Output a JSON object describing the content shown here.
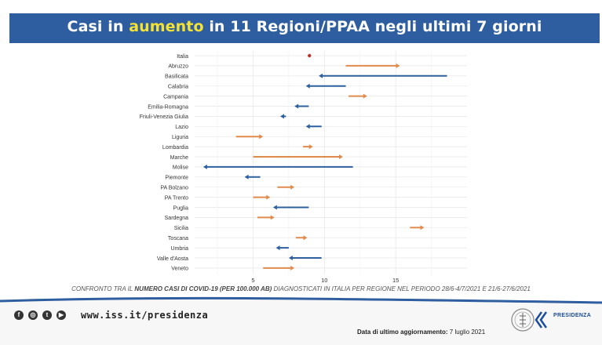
{
  "header": {
    "title_part1": "Casi in ",
    "title_highlight": "aumento",
    "title_part2": " in 11 Regioni/PPAA negli ultimi 7 giorni",
    "bar_color": "#2e5ea0",
    "highlight_color": "#f5e233"
  },
  "chart_data": {
    "type": "dumbbell-arrow",
    "title": "Casi in aumento in 11 Regioni/PPAA negli ultimi 7 giorni",
    "x_ticks": [
      5,
      10,
      15
    ],
    "xlim": [
      0.9,
      20
    ],
    "grid": true,
    "colors": {
      "increase": "#e08b4d",
      "decrease": "#2e60a0",
      "stable": "#b5362c"
    },
    "series": [
      {
        "name": "21/6-27/6/2021",
        "role": "start"
      },
      {
        "name": "28/6-4/7/2021",
        "role": "end"
      }
    ],
    "rows": [
      {
        "label": "Italia",
        "from": 8.9,
        "to": 9.0
      },
      {
        "label": "Abruzzo",
        "from": 11.5,
        "to": 15.3
      },
      {
        "label": "Basilicata",
        "from": 18.6,
        "to": 9.6
      },
      {
        "label": "Calabria",
        "from": 11.5,
        "to": 8.7
      },
      {
        "label": "Campania",
        "from": 11.7,
        "to": 13.0
      },
      {
        "label": "Emilia-Romagna",
        "from": 8.9,
        "to": 7.9
      },
      {
        "label": "Friuli-Venezia Giulia",
        "from": 7.3,
        "to": 6.9
      },
      {
        "label": "Lazio",
        "from": 9.8,
        "to": 8.7
      },
      {
        "label": "Liguria",
        "from": 3.8,
        "to": 5.7
      },
      {
        "label": "Lombardia",
        "from": 8.5,
        "to": 9.2
      },
      {
        "label": "Marche",
        "from": 5.0,
        "to": 11.3
      },
      {
        "label": "Molise",
        "from": 12.0,
        "to": 1.5
      },
      {
        "label": "Piemonte",
        "from": 5.5,
        "to": 4.4
      },
      {
        "label": "PA Bolzano",
        "from": 6.7,
        "to": 7.9
      },
      {
        "label": "PA Trento",
        "from": 5.0,
        "to": 6.2
      },
      {
        "label": "Puglia",
        "from": 8.9,
        "to": 6.4
      },
      {
        "label": "Sardegna",
        "from": 5.3,
        "to": 6.5
      },
      {
        "label": "Sicilia",
        "from": 16.0,
        "to": 17.0
      },
      {
        "label": "Toscana",
        "from": 8.0,
        "to": 8.8
      },
      {
        "label": "Umbria",
        "from": 7.5,
        "to": 6.6
      },
      {
        "label": "Valle d'Aosta",
        "from": 9.8,
        "to": 7.5
      },
      {
        "label": "Veneto",
        "from": 5.7,
        "to": 7.9
      }
    ]
  },
  "caption": {
    "prefix": "CONFRONTO TRA IL ",
    "bold": "NUMERO CASI DI COVID-19 (PER 100.000 AB)",
    "suffix": " DIAGNOSTICATI IN ITALIA PER REGIONE NEL PERIODO   28/6-4/7/2021 E 21/6-27/6/2021"
  },
  "footer": {
    "url": "www.iss.it/presidenza",
    "update_label": "Data di ultimo aggiornamento:",
    "update_value": " 7 luglio 2021",
    "logo_label": "PRESIDENZA",
    "social_icons": [
      "facebook-icon",
      "instagram-icon",
      "twitter-icon",
      "youtube-icon"
    ]
  }
}
